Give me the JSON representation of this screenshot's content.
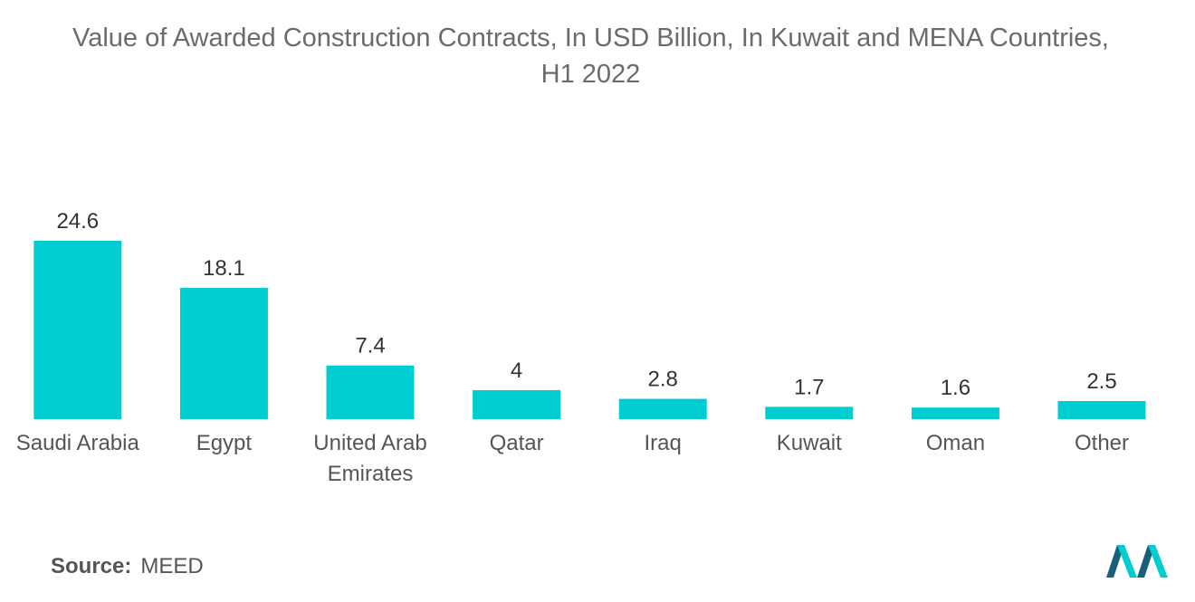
{
  "chart_data": {
    "type": "bar",
    "title": "Value of Awarded Construction Contracts, In USD Billion, In Kuwait and MENA Countries,\nH1 2022",
    "categories": [
      [
        "Saudi Arabia"
      ],
      [
        "Egypt"
      ],
      [
        "United Arab",
        "Emirates"
      ],
      [
        "Qatar"
      ],
      [
        "Iraq"
      ],
      [
        "Kuwait"
      ],
      [
        "Oman"
      ],
      [
        "Other"
      ]
    ],
    "values": [
      24.6,
      18.1,
      7.4,
      4,
      2.8,
      1.7,
      1.6,
      2.5
    ],
    "value_labels": [
      "24.6",
      "18.1",
      "7.4",
      "4",
      "2.8",
      "1.7",
      "1.6",
      "2.5"
    ],
    "xlabel": "",
    "ylabel": "",
    "ylim": [
      0,
      24.6
    ],
    "grid": false,
    "bar_color": "#00cdd2"
  },
  "source": {
    "label": "Source:",
    "value": "MEED"
  },
  "logo": {
    "icon": "mordor-intelligence-logo",
    "colors": [
      "#1a5f7a",
      "#00cdd2"
    ]
  }
}
